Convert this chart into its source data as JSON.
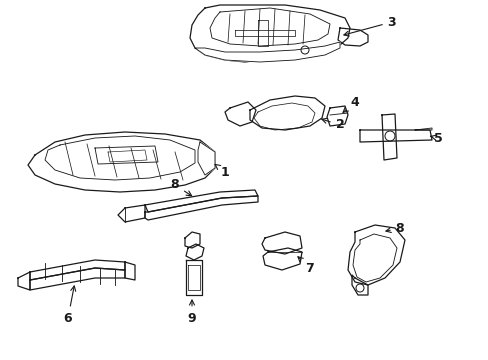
{
  "background_color": "#ffffff",
  "line_color": "#1a1a1a",
  "line_width": 0.9,
  "fig_width": 4.89,
  "fig_height": 3.6,
  "dpi": 100,
  "xlim": [
    0,
    489
  ],
  "ylim": [
    0,
    360
  ]
}
